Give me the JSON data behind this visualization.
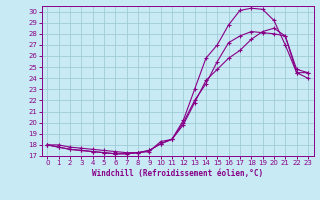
{
  "xlabel": "Windchill (Refroidissement éolien,°C)",
  "xlim": [
    -0.5,
    23.5
  ],
  "ylim": [
    17,
    30.5
  ],
  "xticks": [
    0,
    1,
    2,
    3,
    4,
    5,
    6,
    7,
    8,
    9,
    10,
    11,
    12,
    13,
    14,
    15,
    16,
    17,
    18,
    19,
    20,
    21,
    22,
    23
  ],
  "yticks": [
    17,
    18,
    19,
    20,
    21,
    22,
    23,
    24,
    25,
    26,
    27,
    28,
    29,
    30
  ],
  "bg_color": "#c8eaf4",
  "grid_color": "#a0ccd8",
  "line_color": "#880088",
  "line1_x": [
    0,
    1,
    2,
    3,
    4,
    5,
    6,
    7,
    8,
    9,
    10,
    11,
    12,
    13,
    14,
    15,
    16,
    17,
    18,
    19,
    20,
    21,
    22,
    23
  ],
  "line1_y": [
    18.0,
    18.0,
    17.8,
    17.7,
    17.6,
    17.5,
    17.4,
    17.3,
    17.3,
    17.4,
    18.3,
    18.5,
    20.0,
    22.0,
    23.5,
    25.5,
    27.2,
    27.8,
    28.2,
    28.1,
    28.0,
    27.8,
    24.8,
    24.5
  ],
  "line2_x": [
    0,
    1,
    2,
    3,
    4,
    5,
    6,
    7,
    8,
    9,
    10,
    11,
    12,
    13,
    14,
    15,
    16,
    17,
    18,
    19,
    20,
    21,
    22,
    23
  ],
  "line2_y": [
    18.0,
    17.8,
    17.6,
    17.5,
    17.4,
    17.3,
    17.2,
    17.2,
    17.3,
    17.5,
    18.1,
    18.5,
    20.2,
    23.0,
    25.8,
    27.0,
    28.8,
    30.1,
    30.3,
    30.2,
    29.2,
    27.0,
    24.5,
    24.0
  ],
  "line3_x": [
    0,
    1,
    2,
    3,
    4,
    5,
    6,
    7,
    8,
    9,
    10,
    11,
    12,
    13,
    14,
    15,
    16,
    17,
    18,
    19,
    20,
    21,
    22,
    23
  ],
  "line3_y": [
    18.0,
    17.8,
    17.6,
    17.5,
    17.4,
    17.3,
    17.2,
    17.2,
    17.3,
    17.5,
    18.1,
    18.5,
    19.8,
    21.8,
    23.8,
    24.8,
    25.8,
    26.5,
    27.5,
    28.2,
    28.5,
    27.8,
    24.5,
    24.5
  ]
}
